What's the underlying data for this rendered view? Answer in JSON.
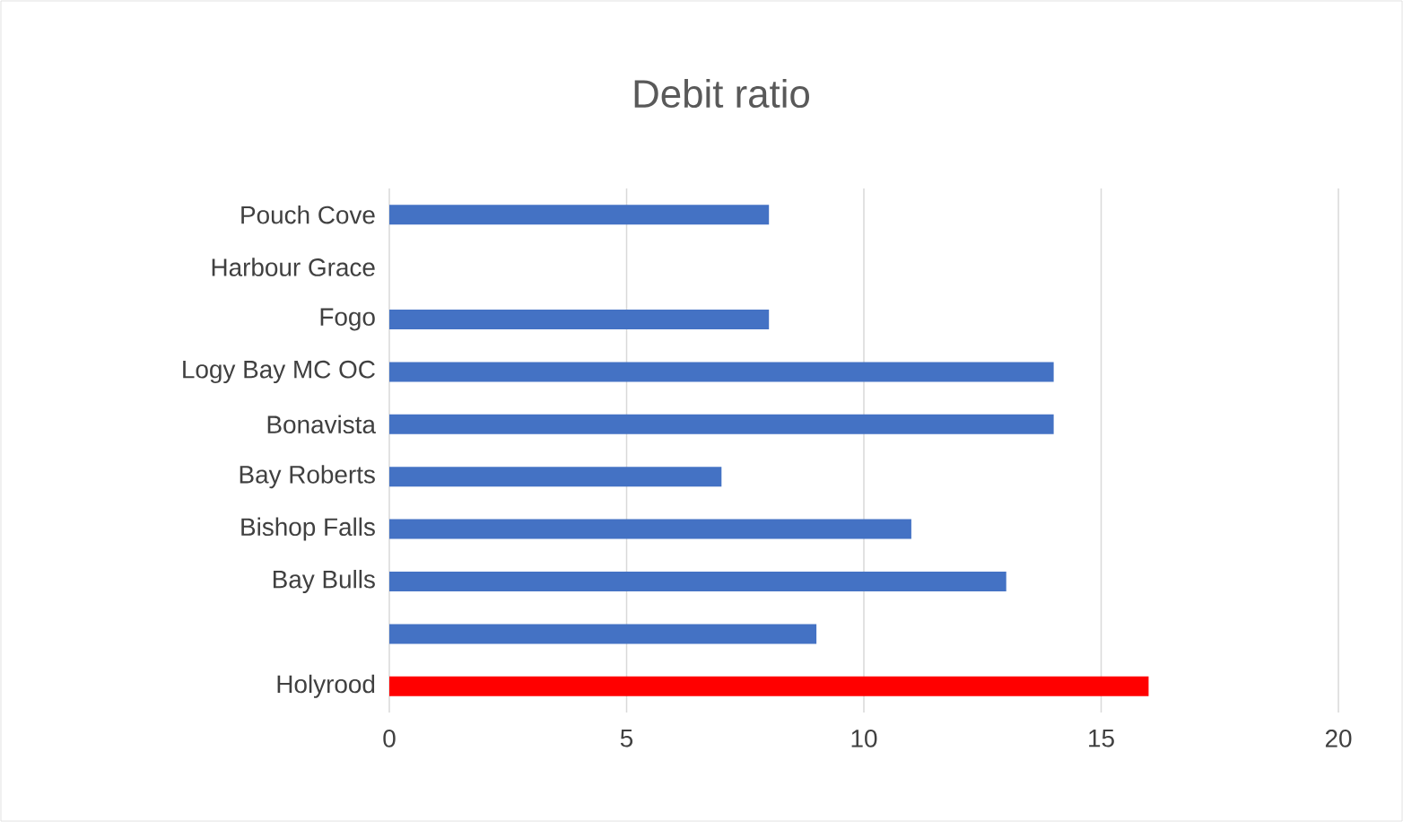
{
  "chart_data": {
    "type": "bar",
    "orientation": "horizontal",
    "title": "Debit ratio",
    "categories": [
      "Pouch Cove",
      "Harbour Grace",
      "Fogo",
      "Logy Bay MC OC",
      "Bonavista",
      "Bay Roberts",
      "Bishop Falls",
      "Bay Bulls",
      null,
      "Holyrood"
    ],
    "values": [
      8,
      null,
      8,
      14,
      14,
      7,
      11,
      13,
      9,
      16
    ],
    "colors": [
      "#4472c4",
      "#4472c4",
      "#4472c4",
      "#4472c4",
      "#4472c4",
      "#4472c4",
      "#4472c4",
      "#4472c4",
      "#4472c4",
      "#ff0000"
    ],
    "xlim": [
      0,
      20
    ],
    "xticks": [
      0,
      5,
      10,
      15,
      20
    ],
    "grid": "x"
  }
}
